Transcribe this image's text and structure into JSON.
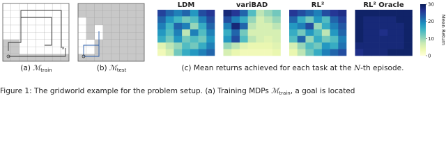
{
  "panels": [
    {
      "label": "(a)",
      "symbol": "ℳ",
      "subscript": "train"
    },
    {
      "label": "(b)",
      "symbol": "ℳ",
      "subscript": "test"
    }
  ],
  "chart_data": {
    "type": "heatmap",
    "colormap": "YlGnBu",
    "vlim": [
      0,
      30
    ],
    "ticks": [
      0,
      10,
      20,
      30
    ],
    "colorbar_label": "Mean Return",
    "maps": [
      {
        "title": "LDM",
        "values": [
          [
            25,
            22,
            20,
            22,
            18,
            24,
            26
          ],
          [
            22,
            18,
            15,
            12,
            14,
            20,
            24
          ],
          [
            20,
            15,
            22,
            20,
            10,
            16,
            22
          ],
          [
            18,
            14,
            20,
            8,
            20,
            14,
            20
          ],
          [
            16,
            12,
            18,
            12,
            14,
            12,
            18
          ],
          [
            5,
            8,
            10,
            14,
            12,
            16,
            20
          ],
          [
            3,
            6,
            12,
            16,
            18,
            20,
            22
          ]
        ]
      },
      {
        "title": "variBAD",
        "values": [
          [
            28,
            26,
            22,
            14,
            8,
            10,
            12
          ],
          [
            24,
            20,
            16,
            10,
            6,
            8,
            10
          ],
          [
            20,
            28,
            22,
            8,
            6,
            6,
            8
          ],
          [
            16,
            22,
            12,
            6,
            6,
            6,
            6
          ],
          [
            18,
            24,
            14,
            8,
            6,
            5,
            6
          ],
          [
            10,
            8,
            5,
            4,
            4,
            4,
            5
          ],
          [
            6,
            4,
            3,
            3,
            3,
            3,
            4
          ]
        ]
      },
      {
        "title": "RL² ",
        "values": [
          [
            26,
            24,
            22,
            20,
            24,
            26,
            27
          ],
          [
            22,
            16,
            12,
            18,
            14,
            22,
            25
          ],
          [
            18,
            20,
            24,
            10,
            16,
            20,
            23
          ],
          [
            16,
            12,
            18,
            14,
            8,
            18,
            22
          ],
          [
            14,
            22,
            10,
            16,
            12,
            14,
            20
          ],
          [
            6,
            10,
            14,
            12,
            18,
            16,
            21
          ],
          [
            4,
            8,
            12,
            16,
            20,
            22,
            24
          ]
        ]
      },
      {
        "title": "RL² Oracle",
        "values": [
          [
            29,
            29,
            29,
            29,
            29,
            29,
            29
          ],
          [
            29,
            28,
            28,
            28,
            28,
            29,
            29
          ],
          [
            29,
            28,
            28,
            28,
            28,
            28,
            29
          ],
          [
            29,
            28,
            28,
            27,
            28,
            28,
            29
          ],
          [
            29,
            28,
            28,
            28,
            28,
            28,
            29
          ],
          [
            28,
            28,
            28,
            28,
            28,
            28,
            29
          ],
          [
            27,
            28,
            28,
            28,
            29,
            29,
            29
          ]
        ]
      }
    ],
    "caption": {
      "prefix": "(c) Mean returns achieved for each task at the ",
      "symbol": "N",
      "suffix": "-th episode."
    }
  },
  "figure_caption": {
    "prefix": "Figure 1: The gridworld example for the problem setup. (a) Training MDPs ",
    "symbol": "ℳ",
    "subscript": "train",
    "suffix": ", a goal is located"
  }
}
